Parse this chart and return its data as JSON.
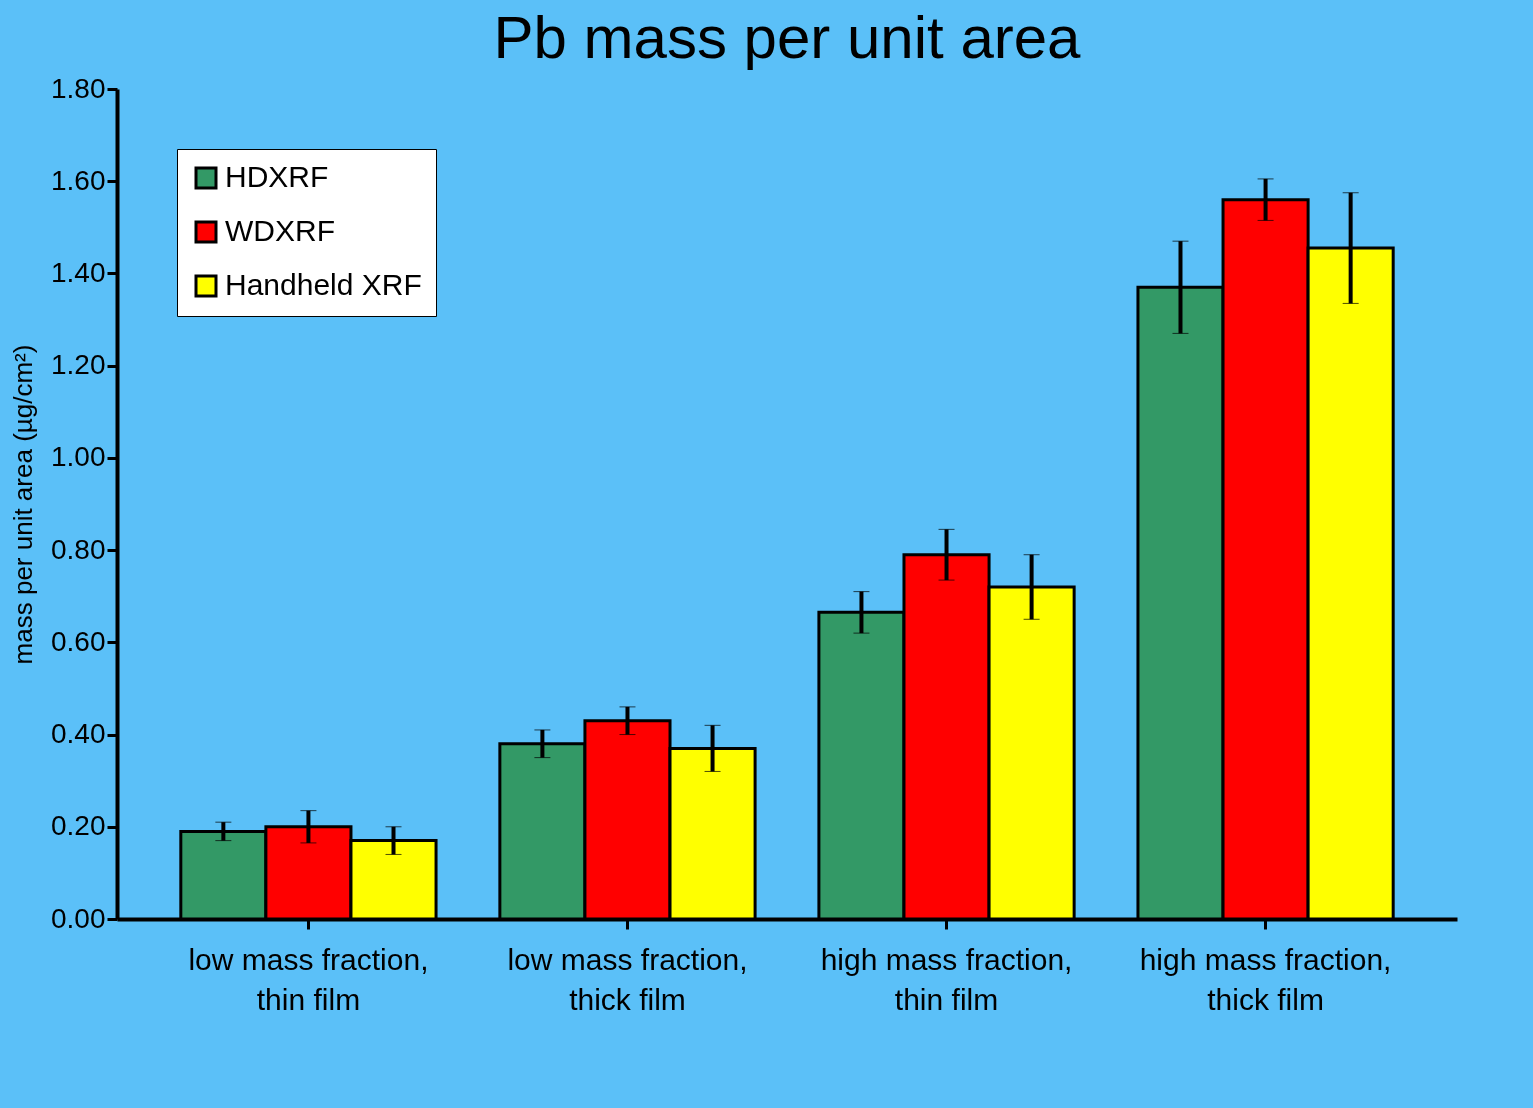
{
  "chart_data": {
    "type": "bar",
    "title": "Pb mass per unit area",
    "ylabel": "mass per unit area (µg/cm²)",
    "categories": [
      "low mass fraction, thin film",
      "low mass fraction, thick film",
      "high mass fraction, thin film",
      "high mass fraction, thick film"
    ],
    "series": [
      {
        "name": "HDXRF",
        "color": "#339966",
        "values": [
          0.19,
          0.38,
          0.665,
          1.37
        ],
        "errors": [
          0.02,
          0.03,
          0.045,
          0.1
        ]
      },
      {
        "name": "WDXRF",
        "color": "#ff0000",
        "values": [
          0.2,
          0.43,
          0.79,
          1.56
        ],
        "errors": [
          0.035,
          0.03,
          0.055,
          0.045
        ]
      },
      {
        "name": "Handheld XRF",
        "color": "#ffff00",
        "values": [
          0.17,
          0.37,
          0.72,
          1.455
        ],
        "errors": [
          0.03,
          0.05,
          0.07,
          0.12
        ]
      }
    ],
    "ylim": [
      0,
      1.8
    ],
    "yticks": [
      {
        "value": 0,
        "label": "0.00"
      },
      {
        "value": 0.2,
        "label": "0.20"
      },
      {
        "value": 0.4,
        "label": "0.40"
      },
      {
        "value": 0.6,
        "label": "0.60"
      },
      {
        "value": 0.8,
        "label": "0.80"
      },
      {
        "value": 1,
        "label": "1.00"
      },
      {
        "value": 1.2,
        "label": "1.20"
      },
      {
        "value": 1.4,
        "label": "1.40"
      },
      {
        "value": 1.6,
        "label": "1.60"
      },
      {
        "value": 1.8,
        "label": "1.80"
      }
    ],
    "grid": false,
    "legend": "top left"
  }
}
